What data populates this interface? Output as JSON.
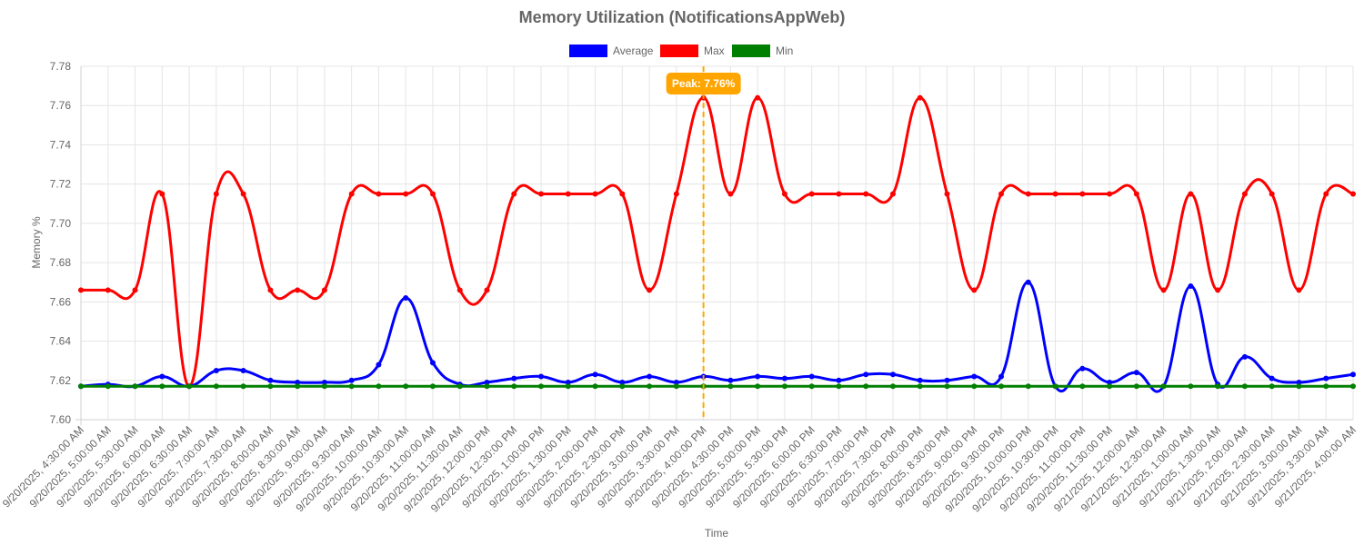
{
  "chart_data": {
    "type": "line",
    "title": "Memory Utilization (NotificationsAppWeb)",
    "xlabel": "Time",
    "ylabel": "Memory %",
    "ylim": [
      7.6,
      7.78
    ],
    "yticks": [
      "7.60",
      "7.62",
      "7.64",
      "7.66",
      "7.68",
      "7.70",
      "7.72",
      "7.74",
      "7.76",
      "7.78"
    ],
    "grid": true,
    "legend_position": "top-center",
    "x": [
      "9/20/2025, 4:30:00 AM",
      "9/20/2025, 5:00:00 AM",
      "9/20/2025, 5:30:00 AM",
      "9/20/2025, 6:00:00 AM",
      "9/20/2025, 6:30:00 AM",
      "9/20/2025, 7:00:00 AM",
      "9/20/2025, 7:30:00 AM",
      "9/20/2025, 8:00:00 AM",
      "9/20/2025, 8:30:00 AM",
      "9/20/2025, 9:00:00 AM",
      "9/20/2025, 9:30:00 AM",
      "9/20/2025, 10:00:00 AM",
      "9/20/2025, 10:30:00 AM",
      "9/20/2025, 11:00:00 AM",
      "9/20/2025, 11:30:00 AM",
      "9/20/2025, 12:00:00 PM",
      "9/20/2025, 12:30:00 PM",
      "9/20/2025, 1:00:00 PM",
      "9/20/2025, 1:30:00 PM",
      "9/20/2025, 2:00:00 PM",
      "9/20/2025, 2:30:00 PM",
      "9/20/2025, 3:00:00 PM",
      "9/20/2025, 3:30:00 PM",
      "9/20/2025, 4:00:00 PM",
      "9/20/2025, 4:30:00 PM",
      "9/20/2025, 5:00:00 PM",
      "9/20/2025, 5:30:00 PM",
      "9/20/2025, 6:00:00 PM",
      "9/20/2025, 6:30:00 PM",
      "9/20/2025, 7:00:00 PM",
      "9/20/2025, 7:30:00 PM",
      "9/20/2025, 8:00:00 PM",
      "9/20/2025, 8:30:00 PM",
      "9/20/2025, 9:00:00 PM",
      "9/20/2025, 9:30:00 PM",
      "9/20/2025, 10:00:00 PM",
      "9/20/2025, 10:30:00 PM",
      "9/20/2025, 11:00:00 PM",
      "9/20/2025, 11:30:00 PM",
      "9/21/2025, 12:00:00 AM",
      "9/21/2025, 12:30:00 AM",
      "9/21/2025, 1:00:00 AM",
      "9/21/2025, 1:30:00 AM",
      "9/21/2025, 2:00:00 AM",
      "9/21/2025, 2:30:00 AM",
      "9/21/2025, 3:00:00 AM",
      "9/21/2025, 3:30:00 AM",
      "9/21/2025, 4:00:00 AM"
    ],
    "series": [
      {
        "name": "Average",
        "color": "#0000ff",
        "values": [
          7.617,
          7.618,
          7.617,
          7.622,
          7.617,
          7.625,
          7.625,
          7.62,
          7.619,
          7.619,
          7.62,
          7.628,
          7.662,
          7.629,
          7.618,
          7.619,
          7.621,
          7.622,
          7.619,
          7.623,
          7.619,
          7.622,
          7.619,
          7.622,
          7.62,
          7.622,
          7.621,
          7.622,
          7.62,
          7.623,
          7.623,
          7.62,
          7.62,
          7.622,
          7.622,
          7.67,
          7.617,
          7.626,
          7.619,
          7.624,
          7.617,
          7.668,
          7.618,
          7.632,
          7.621,
          7.619,
          7.621,
          7.623
        ]
      },
      {
        "name": "Max",
        "color": "#ff0000",
        "values": [
          7.666,
          7.666,
          7.666,
          7.715,
          7.617,
          7.715,
          7.715,
          7.666,
          7.666,
          7.666,
          7.715,
          7.715,
          7.715,
          7.715,
          7.666,
          7.666,
          7.715,
          7.715,
          7.715,
          7.715,
          7.715,
          7.666,
          7.715,
          7.764,
          7.715,
          7.764,
          7.715,
          7.715,
          7.715,
          7.715,
          7.715,
          7.764,
          7.715,
          7.666,
          7.715,
          7.715,
          7.715,
          7.715,
          7.715,
          7.715,
          7.666,
          7.715,
          7.666,
          7.715,
          7.715,
          7.666,
          7.715,
          7.715
        ]
      },
      {
        "name": "Min",
        "color": "#008000",
        "values": [
          7.617,
          7.617,
          7.617,
          7.617,
          7.617,
          7.617,
          7.617,
          7.617,
          7.617,
          7.617,
          7.617,
          7.617,
          7.617,
          7.617,
          7.617,
          7.617,
          7.617,
          7.617,
          7.617,
          7.617,
          7.617,
          7.617,
          7.617,
          7.617,
          7.617,
          7.617,
          7.617,
          7.617,
          7.617,
          7.617,
          7.617,
          7.617,
          7.617,
          7.617,
          7.617,
          7.617,
          7.617,
          7.617,
          7.617,
          7.617,
          7.617,
          7.617,
          7.617,
          7.617,
          7.617,
          7.617,
          7.617,
          7.617
        ]
      }
    ],
    "annotations": [
      {
        "label": "Peak: 7.76%",
        "x": "9/20/2025, 4:00:00 PM",
        "value": 7.764,
        "color": "#ffa500",
        "style": "dashed vertical line"
      }
    ]
  }
}
